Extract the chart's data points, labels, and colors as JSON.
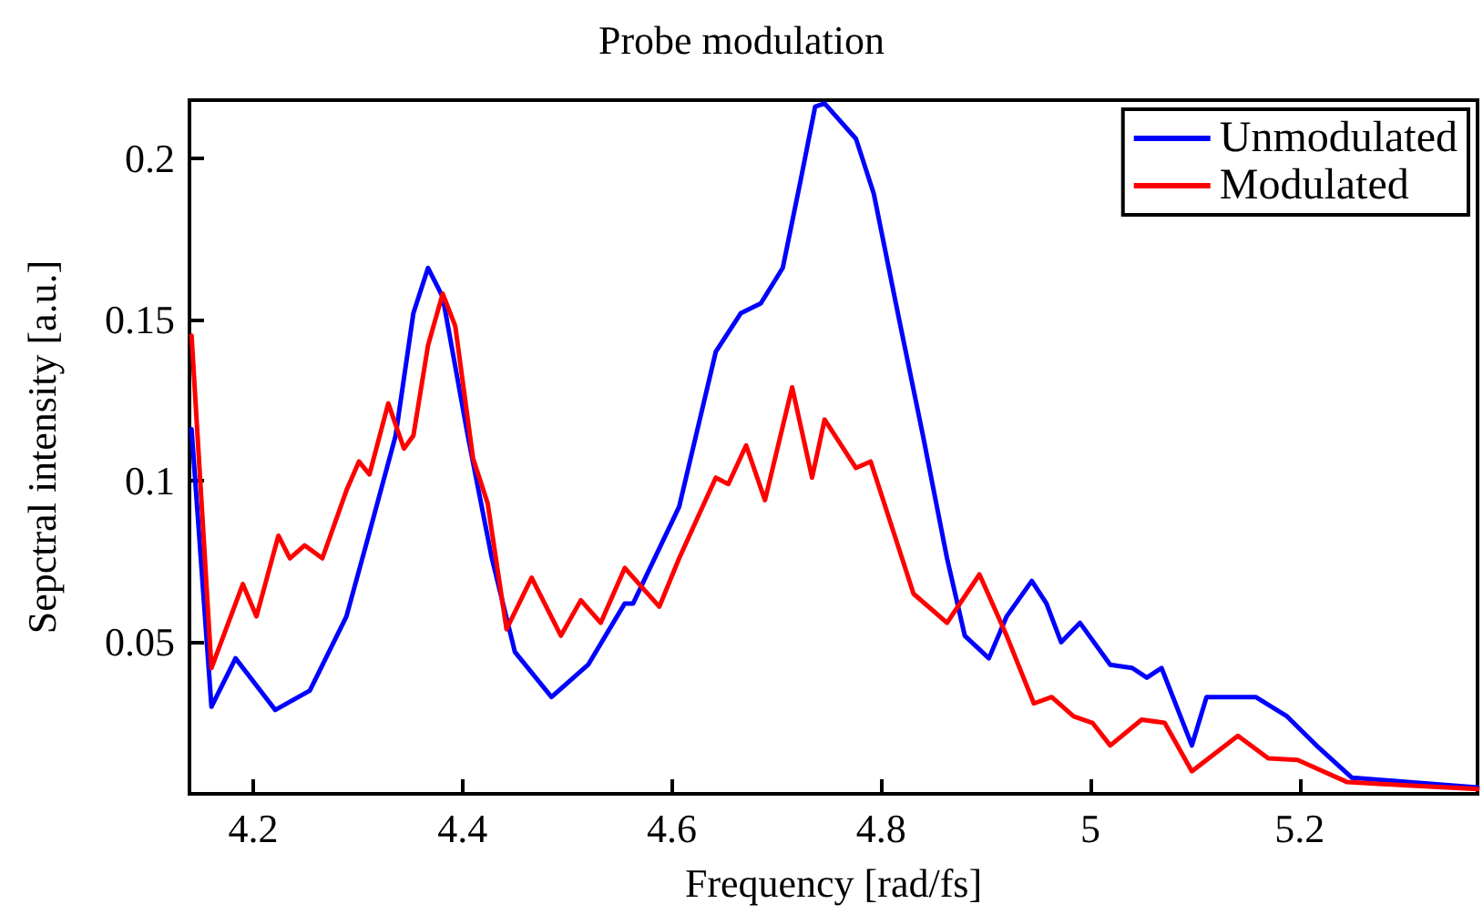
{
  "chart_data": {
    "type": "line",
    "title": "Probe modulation",
    "xlabel": "Frequency [rad/fs]",
    "ylabel": "Sepctral intensity [a.u.]",
    "xlim": [
      4.139,
      5.37
    ],
    "xticks": [
      4.2,
      4.4,
      4.6,
      4.8,
      5,
      5.2
    ],
    "ylim": [
      0.003,
      0.218
    ],
    "yticks": [
      0.05,
      0.1,
      0.15,
      0.2
    ],
    "grid": false,
    "legend": "top right",
    "line_style": "solid",
    "marker": "none",
    "series": [
      {
        "name": "Unmodulated",
        "color": "#0000ff",
        "x": [
          4.141,
          4.16,
          4.183,
          4.221,
          4.254,
          4.289,
          4.311,
          4.336,
          4.353,
          4.367,
          4.381,
          4.405,
          4.428,
          4.45,
          4.485,
          4.52,
          4.555,
          4.563,
          4.607,
          4.642,
          4.666,
          4.685,
          4.706,
          4.723,
          4.737,
          4.746,
          4.776,
          4.793,
          4.816,
          4.84,
          4.863,
          4.88,
          4.903,
          4.92,
          4.944,
          4.958,
          4.972,
          4.99,
          5.019,
          5.04,
          5.054,
          5.068,
          5.097,
          5.111,
          5.158,
          5.188,
          5.216,
          5.25,
          5.303,
          5.37
        ],
        "values": [
          0.116,
          0.03,
          0.045,
          0.029,
          0.035,
          0.058,
          0.084,
          0.114,
          0.152,
          0.166,
          0.157,
          0.114,
          0.076,
          0.047,
          0.033,
          0.043,
          0.062,
          0.062,
          0.092,
          0.14,
          0.152,
          0.155,
          0.166,
          0.193,
          0.216,
          0.217,
          0.206,
          0.189,
          0.152,
          0.114,
          0.076,
          0.052,
          0.045,
          0.058,
          0.069,
          0.062,
          0.05,
          0.056,
          0.043,
          0.042,
          0.039,
          0.042,
          0.018,
          0.033,
          0.033,
          0.027,
          0.018,
          0.008,
          0.0067,
          0.005
        ]
      },
      {
        "name": "Modulated",
        "color": "#ff0000",
        "x": [
          4.141,
          4.16,
          4.19,
          4.203,
          4.224,
          4.235,
          4.249,
          4.266,
          4.289,
          4.301,
          4.311,
          4.329,
          4.344,
          4.353,
          4.367,
          4.381,
          4.393,
          4.41,
          4.424,
          4.442,
          4.466,
          4.494,
          4.513,
          4.532,
          4.555,
          4.588,
          4.607,
          4.642,
          4.654,
          4.671,
          4.689,
          4.715,
          4.734,
          4.746,
          4.776,
          4.79,
          4.81,
          4.831,
          4.863,
          4.894,
          4.92,
          4.946,
          4.963,
          4.984,
          5.002,
          5.019,
          5.049,
          5.071,
          5.097,
          5.141,
          5.17,
          5.198,
          5.245,
          5.303,
          5.37
        ],
        "values": [
          0.145,
          0.042,
          0.068,
          0.058,
          0.083,
          0.076,
          0.08,
          0.076,
          0.097,
          0.106,
          0.102,
          0.124,
          0.11,
          0.114,
          0.142,
          0.158,
          0.148,
          0.107,
          0.093,
          0.054,
          0.07,
          0.052,
          0.063,
          0.056,
          0.073,
          0.061,
          0.076,
          0.101,
          0.099,
          0.111,
          0.094,
          0.129,
          0.101,
          0.119,
          0.104,
          0.106,
          0.086,
          0.065,
          0.056,
          0.071,
          0.052,
          0.031,
          0.033,
          0.027,
          0.025,
          0.018,
          0.026,
          0.025,
          0.01,
          0.021,
          0.014,
          0.0135,
          0.0067,
          0.0056,
          0.0045
        ]
      }
    ]
  }
}
